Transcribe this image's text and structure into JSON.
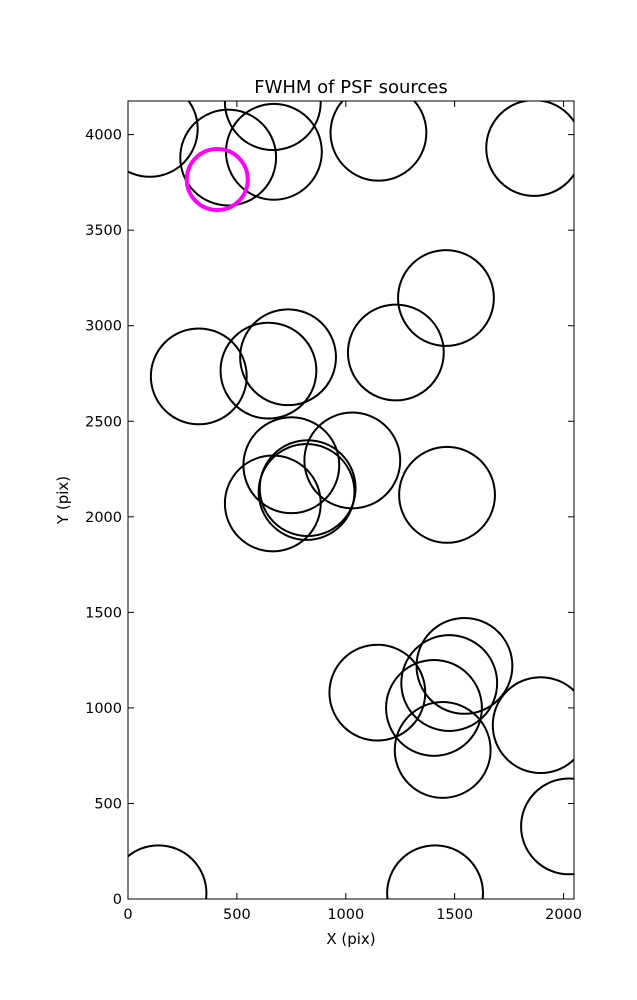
{
  "chart_data": {
    "type": "scatter",
    "title": "FWHM of PSF sources",
    "xlabel": "X (pix)",
    "ylabel": "Y (pix)",
    "xlim": [
      0,
      2048
    ],
    "ylim": [
      0,
      4176
    ],
    "xticks": [
      0,
      500,
      1000,
      1500,
      2000
    ],
    "yticks": [
      0,
      500,
      1000,
      1500,
      2000,
      2500,
      3000,
      3500,
      4000
    ],
    "grid": false,
    "marker": "open circle",
    "series": [
      {
        "color": "#000000",
        "circle_radius_xunits": 220,
        "points": [
          {
            "x": 100,
            "y": 4030
          },
          {
            "x": 460,
            "y": 3880
          },
          {
            "x": 670,
            "y": 3910
          },
          {
            "x": 665,
            "y": 4170
          },
          {
            "x": 1150,
            "y": 4010
          },
          {
            "x": 1865,
            "y": 3930
          },
          {
            "x": 1460,
            "y": 3145
          },
          {
            "x": 325,
            "y": 2735
          },
          {
            "x": 645,
            "y": 2765
          },
          {
            "x": 735,
            "y": 2835
          },
          {
            "x": 1230,
            "y": 2860
          },
          {
            "x": 750,
            "y": 2270
          },
          {
            "x": 1030,
            "y": 2295
          },
          {
            "x": 820,
            "y": 2130
          },
          {
            "x": 825,
            "y": 2150
          },
          {
            "x": 665,
            "y": 2070
          },
          {
            "x": 1465,
            "y": 2115
          },
          {
            "x": 1545,
            "y": 1220
          },
          {
            "x": 1475,
            "y": 1130
          },
          {
            "x": 1145,
            "y": 1080
          },
          {
            "x": 1405,
            "y": 1000
          },
          {
            "x": 1445,
            "y": 780
          },
          {
            "x": 1895,
            "y": 910
          },
          {
            "x": 2025,
            "y": 380
          },
          {
            "x": 140,
            "y": 30
          },
          {
            "x": 1410,
            "y": 30
          }
        ]
      },
      {
        "color": "#ff00ff",
        "circle_radius_xunits": 140,
        "points": [
          {
            "x": 410,
            "y": 3765
          }
        ]
      }
    ]
  }
}
